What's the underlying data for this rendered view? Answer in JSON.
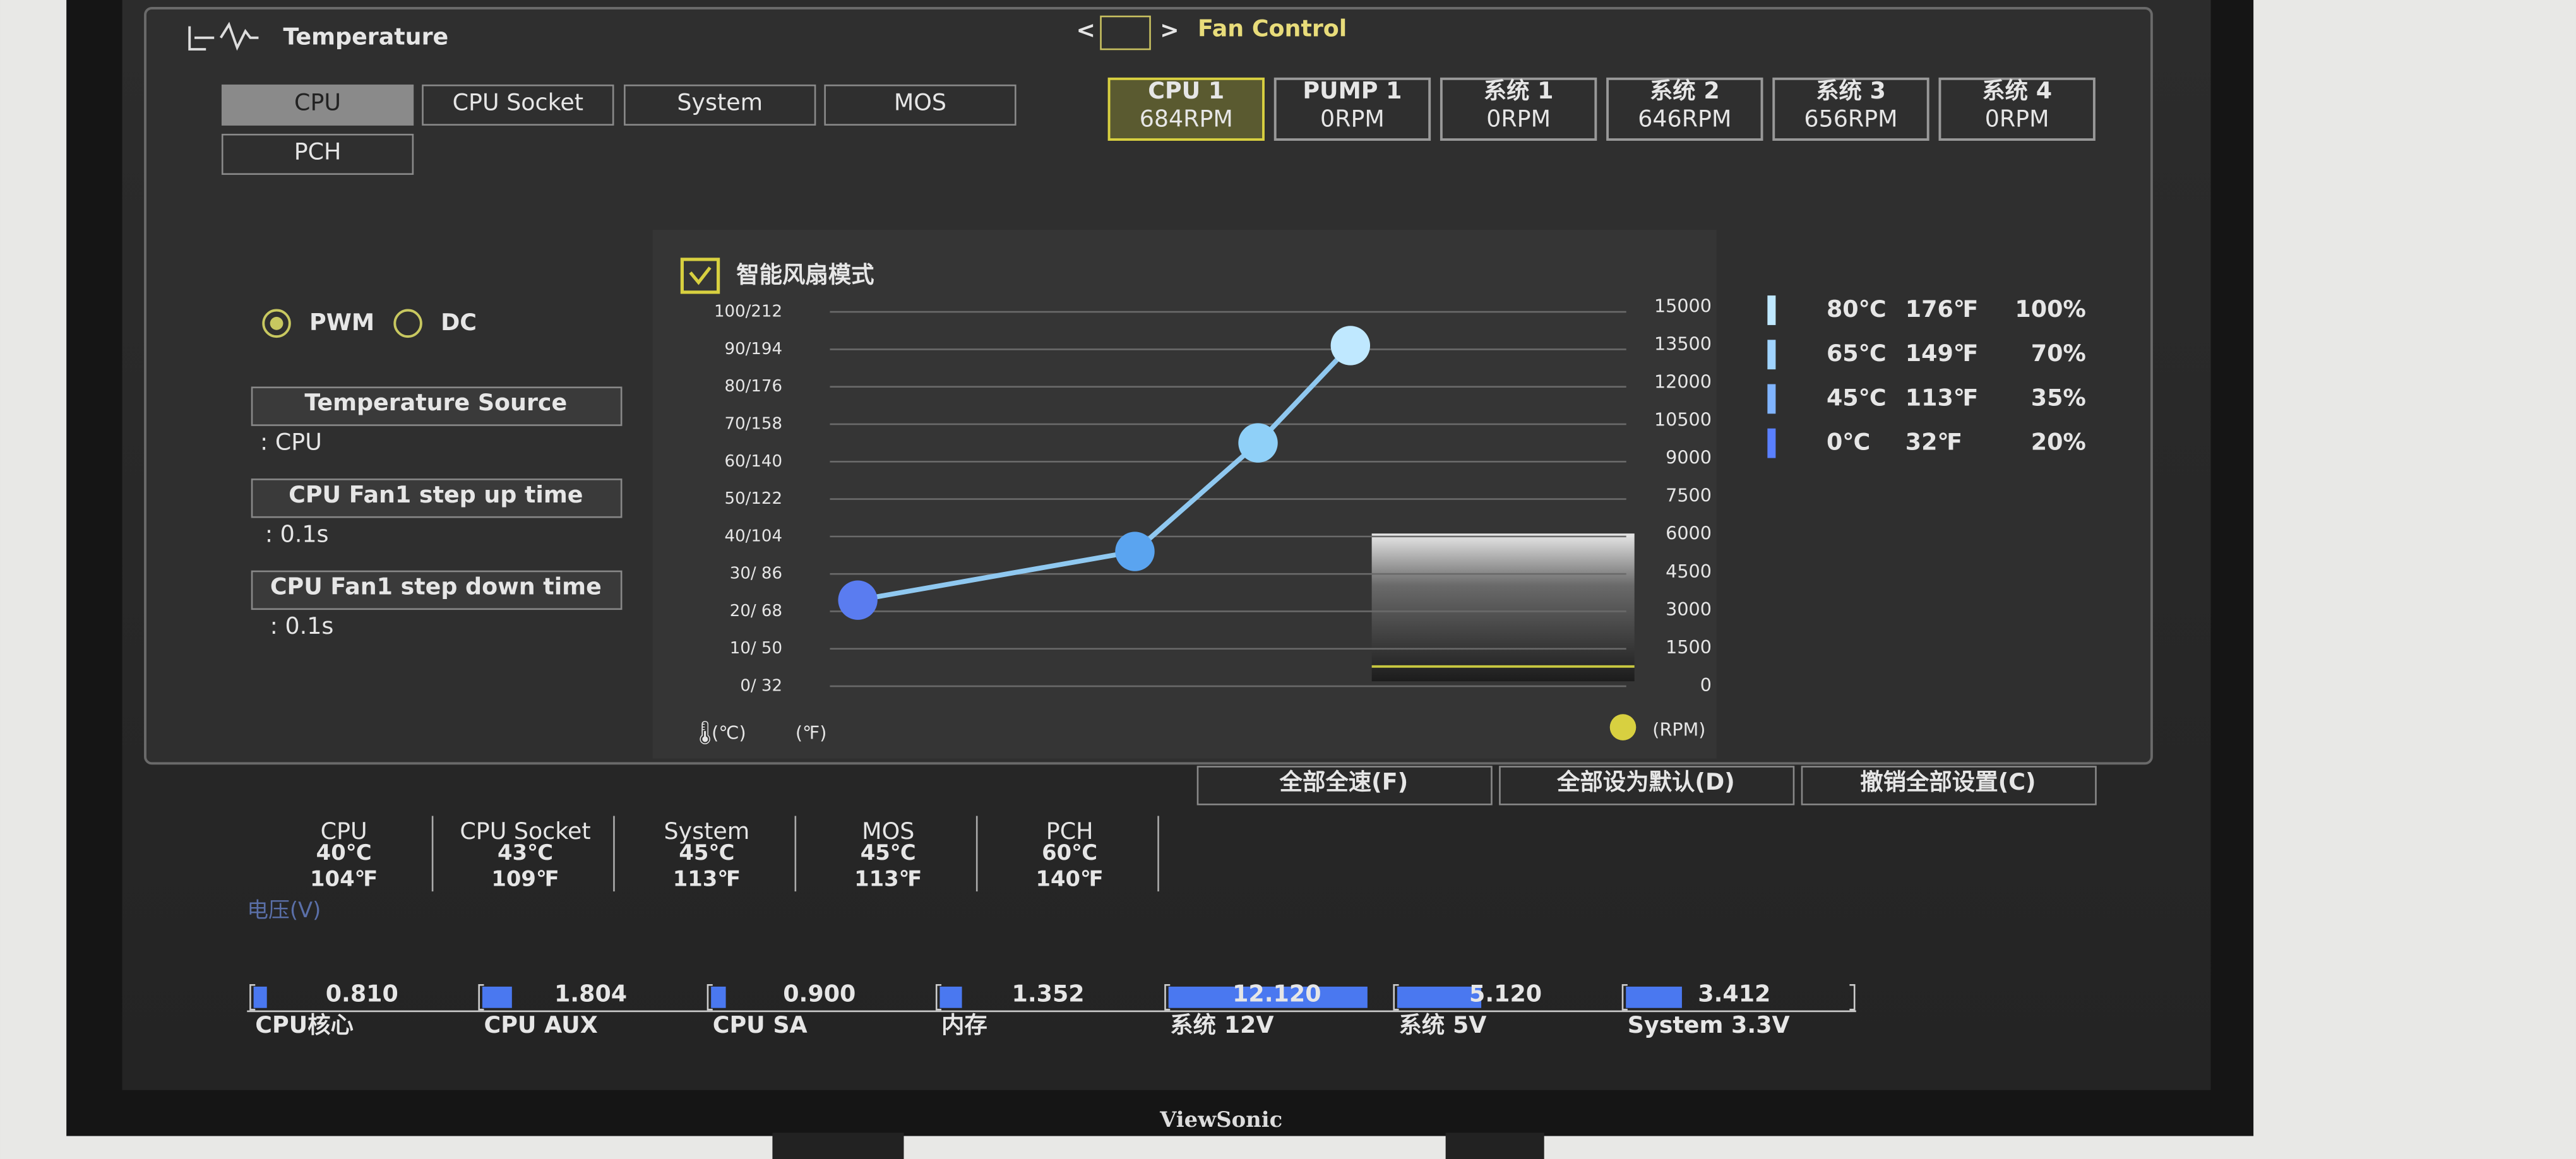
{
  "header": {
    "title": "Temperature",
    "fan_control": "Fan Control"
  },
  "temp_tabs": [
    "CPU",
    "CPU Socket",
    "System",
    "MOS",
    "PCH"
  ],
  "fan_tabs": [
    {
      "name": "CPU 1",
      "rpm": "684RPM"
    },
    {
      "name": "PUMP 1",
      "rpm": "0RPM"
    },
    {
      "name": "系统 1",
      "rpm": "0RPM"
    },
    {
      "name": "系统 2",
      "rpm": "646RPM"
    },
    {
      "name": "系统 3",
      "rpm": "656RPM"
    },
    {
      "name": "系统 4",
      "rpm": "0RPM"
    }
  ],
  "mode": {
    "pwm": "PWM",
    "dc": "DC"
  },
  "settings": [
    {
      "label": "Temperature Source",
      "value": ": CPU"
    },
    {
      "label": "CPU Fan1 step up time",
      "value": ": 0.1s"
    },
    {
      "label": "CPU Fan1 step down time",
      "value": ": 0.1s"
    }
  ],
  "chart": {
    "title": "智能风扇模式",
    "left_ticks": [
      "100/212",
      "90/194",
      "80/176",
      "70/158",
      "60/140",
      "50/122",
      "40/104",
      "30/ 86",
      "20/ 68",
      "10/ 50",
      "0/ 32"
    ],
    "right_ticks": [
      15000,
      13500,
      12000,
      10500,
      9000,
      7500,
      6000,
      4500,
      3000,
      1500,
      0
    ],
    "unit_c": "(℃)",
    "unit_f": "(℉)",
    "unit_rpm": "(RPM)",
    "curve": {
      "temps": [
        0,
        45,
        65,
        80
      ],
      "levels": [
        23,
        36,
        65,
        91
      ]
    }
  },
  "legend": [
    {
      "c": "80℃",
      "f": "176℉",
      "pct": "100%"
    },
    {
      "c": "65℃",
      "f": "149℉",
      "pct": "70%"
    },
    {
      "c": "45℃",
      "f": "113℉",
      "pct": "35%"
    },
    {
      "c": "0℃",
      "f": "32℉",
      "pct": "20%"
    }
  ],
  "buttons": [
    "全部全速(F)",
    "全部设为默认(D)",
    "撤销全部设置(C)"
  ],
  "readings": [
    {
      "name": "CPU",
      "c": "40℃",
      "f": "104℉"
    },
    {
      "name": "CPU Socket",
      "c": "43℃",
      "f": "109℉"
    },
    {
      "name": "System",
      "c": "45℃",
      "f": "113℉"
    },
    {
      "name": "MOS",
      "c": "45℃",
      "f": "113℉"
    },
    {
      "name": "PCH",
      "c": "60℃",
      "f": "140℉"
    }
  ],
  "voltage_title": "电压(V)",
  "voltages": [
    {
      "name": "CPU核心",
      "value": 0.81,
      "label": "0.810"
    },
    {
      "name": "CPU AUX",
      "value": 1.804,
      "label": "1.804"
    },
    {
      "name": "CPU SA",
      "value": 0.9,
      "label": "0.900"
    },
    {
      "name": "内存",
      "value": 1.352,
      "label": "1.352"
    },
    {
      "name": "系统 12V",
      "value": 12.12,
      "label": "12.120"
    },
    {
      "name": "系统 5V",
      "value": 5.12,
      "label": "5.120"
    },
    {
      "name": "System 3.3V",
      "value": 3.412,
      "label": "3.412"
    }
  ],
  "brand": "ViewSonic"
}
